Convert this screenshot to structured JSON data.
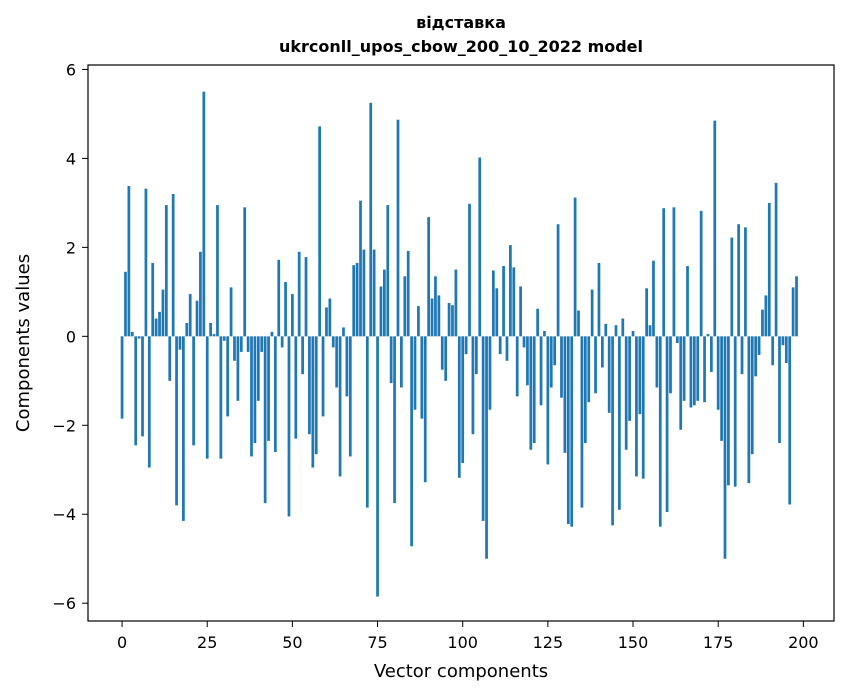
{
  "chart_data": {
    "type": "bar",
    "title": "відставка",
    "subtitle": "ukrconll_upos_cbow_200_10_2022 model",
    "xlabel": "Vector components",
    "ylabel": "Components values",
    "xlim": [
      -10,
      209
    ],
    "ylim": [
      -6.4,
      6.1
    ],
    "xticks": [
      0,
      25,
      50,
      75,
      100,
      125,
      150,
      175,
      200
    ],
    "yticks": [
      -6,
      -4,
      -2,
      0,
      2,
      4,
      6
    ],
    "ytick_labels": [
      "−6",
      "−4",
      "−2",
      "0",
      "2",
      "4",
      "6"
    ],
    "color": "#1f77b4",
    "values": [
      -1.85,
      1.45,
      3.38,
      0.1,
      -2.45,
      -0.05,
      -2.25,
      3.32,
      -2.95,
      1.65,
      0.4,
      0.55,
      1.05,
      2.95,
      -1.0,
      3.2,
      -3.8,
      -0.3,
      -4.15,
      0.3,
      0.95,
      -2.45,
      0.8,
      1.9,
      5.5,
      -2.75,
      0.3,
      0.05,
      2.95,
      -2.75,
      -0.1,
      -1.8,
      1.1,
      -0.55,
      -1.45,
      -0.35,
      2.9,
      -0.35,
      -2.7,
      -2.4,
      -1.45,
      -0.35,
      -3.75,
      -2.35,
      0.1,
      -2.6,
      1.72,
      -0.25,
      1.22,
      -4.05,
      0.95,
      -2.3,
      1.9,
      -0.85,
      1.78,
      -2.2,
      -2.95,
      -2.65,
      4.72,
      -1.8,
      0.65,
      0.85,
      -0.25,
      -1.15,
      -3.15,
      0.2,
      -1.35,
      -2.7,
      1.6,
      1.65,
      3.05,
      1.95,
      -3.85,
      5.25,
      1.95,
      -5.85,
      1.12,
      1.5,
      2.95,
      -1.05,
      -3.75,
      4.87,
      -1.15,
      1.35,
      1.92,
      -4.72,
      -1.65,
      0.68,
      -1.85,
      -3.28,
      2.68,
      0.85,
      1.35,
      0.92,
      -0.75,
      -1.0,
      0.75,
      0.7,
      1.5,
      -3.18,
      -2.85,
      -0.4,
      2.98,
      -2.2,
      -0.85,
      4.02,
      -4.15,
      -5.0,
      -1.65,
      1.48,
      1.08,
      -0.4,
      1.58,
      -0.55,
      2.05,
      1.55,
      -1.35,
      1.12,
      -0.25,
      -1.1,
      -2.55,
      -2.4,
      0.62,
      -1.55,
      0.12,
      -2.88,
      -1.15,
      -0.65,
      2.52,
      -1.38,
      -2.62,
      -4.22,
      -4.28,
      3.12,
      0.58,
      -3.85,
      -2.4,
      -1.48,
      1.05,
      -1.28,
      1.65,
      -0.7,
      0.28,
      -1.72,
      -4.25,
      0.25,
      -3.9,
      0.4,
      -2.55,
      -1.9,
      0.12,
      -3.15,
      -1.75,
      -3.2,
      1.08,
      0.25,
      1.7,
      -1.15,
      -4.28,
      2.88,
      -3.95,
      -1.28,
      2.9,
      -0.15,
      -2.1,
      -1.45,
      1.58,
      -1.6,
      -1.55,
      -1.45,
      2.82,
      -1.48,
      0.05,
      -0.8,
      4.85,
      -1.65,
      -2.35,
      -5.0,
      -3.35,
      2.22,
      -3.38,
      2.52,
      -0.85,
      2.45,
      -3.3,
      -2.65,
      -0.9,
      -0.42,
      0.6,
      0.92,
      3.0,
      -0.65,
      3.45,
      -2.4,
      -0.2,
      -0.6,
      -3.78,
      1.1,
      1.35
    ]
  }
}
